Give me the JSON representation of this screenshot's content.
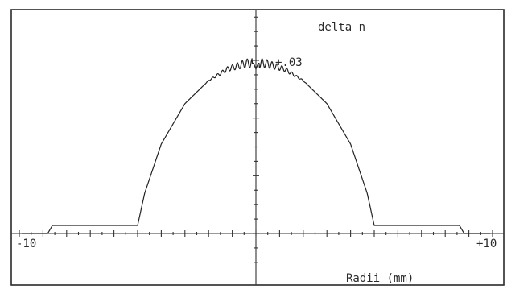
{
  "chart_data": {
    "type": "line",
    "title": "delta n",
    "xlabel": "Radii (mm)",
    "ylabel": "",
    "xlim": [
      -10,
      10
    ],
    "ylim": [
      -0.005,
      0.04
    ],
    "x_tick_labels": {
      "left": "-10",
      "right": "+10"
    },
    "y_annotation": "+.03",
    "y_annotation_value": 0.03,
    "grid": false,
    "legend": "none",
    "series": [
      {
        "x": [
          -9.9,
          -8.8,
          -8.6,
          -5.0,
          -4.7,
          -4.0,
          -3.0,
          -2.0,
          -1.6,
          -1.2,
          -0.8,
          -0.4,
          -0.1,
          0.0,
          0.1,
          0.4,
          0.8,
          1.2,
          1.6,
          2.0,
          3.0,
          4.0,
          4.7,
          5.0,
          8.6,
          8.8,
          9.9
        ],
        "y": [
          0.0,
          0.0,
          0.0014,
          0.0014,
          0.007,
          0.0155,
          0.0225,
          0.0265,
          0.0275,
          0.0285,
          0.029,
          0.0295,
          0.0295,
          0.0285,
          0.0295,
          0.0295,
          0.029,
          0.0285,
          0.0275,
          0.0265,
          0.0225,
          0.0155,
          0.007,
          0.0014,
          0.0014,
          0.0,
          0.0
        ]
      }
    ],
    "colors": {
      "line": "#222222",
      "frame": "#2a2a2a"
    }
  }
}
